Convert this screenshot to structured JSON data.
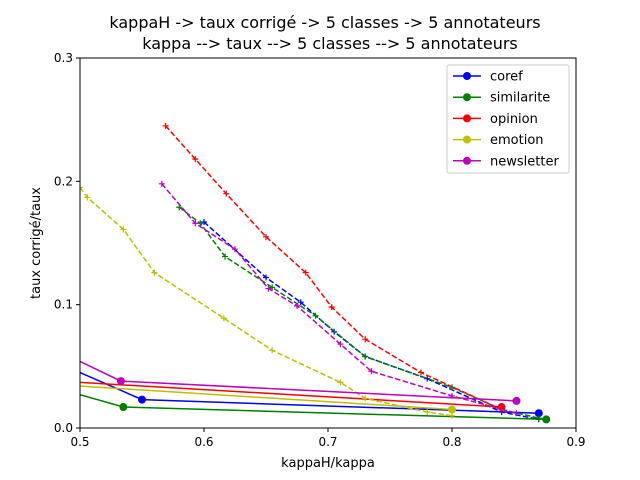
{
  "chart_data": {
    "type": "line",
    "title": [
      "kappaH -> taux corrigé -> 5 classes -> 5 annotateurs",
      "kappa --> taux --> 5 classes --> 5 annotateurs"
    ],
    "xlabel": "kappaH/kappa",
    "ylabel": "taux corrigé/taux",
    "xlim": [
      0.5,
      0.9
    ],
    "ylim": [
      0,
      0.3
    ],
    "xticks": [
      "0.5",
      "0.6",
      "0.7",
      "0.8",
      "0.9"
    ],
    "yticks": [
      "0.0",
      "0.1",
      "0.2",
      "0.3"
    ],
    "xtick_values": [
      0.5,
      0.6,
      0.7,
      0.8,
      0.9
    ],
    "ytick_values": [
      0.0,
      0.1,
      0.2,
      0.3
    ],
    "legend_position": "top-right",
    "grid": false,
    "series": [
      {
        "name": "coref",
        "color": "#0000ff",
        "solid": [
          [
            0.5,
            0.045
          ],
          [
            0.55,
            0.023
          ],
          [
            0.87,
            0.012
          ]
        ],
        "dashed": [
          [
            0.6,
            0.167
          ],
          [
            0.65,
            0.122
          ],
          [
            0.678,
            0.102
          ],
          [
            0.705,
            0.078
          ],
          [
            0.73,
            0.058
          ],
          [
            0.78,
            0.04
          ],
          [
            0.84,
            0.013
          ],
          [
            0.87,
            0.007
          ]
        ]
      },
      {
        "name": "similarite",
        "color": "#008000",
        "solid": [
          [
            0.5,
            0.027
          ],
          [
            0.535,
            0.017
          ],
          [
            0.876,
            0.007
          ]
        ],
        "dashed": [
          [
            0.58,
            0.179
          ],
          [
            0.597,
            0.166
          ],
          [
            0.617,
            0.139
          ],
          [
            0.655,
            0.114
          ],
          [
            0.69,
            0.091
          ],
          [
            0.73,
            0.058
          ],
          [
            0.8,
            0.033
          ],
          [
            0.84,
            0.015
          ],
          [
            0.87,
            0.008
          ]
        ]
      },
      {
        "name": "opinion",
        "color": "#ff0000",
        "solid": [
          [
            0.5,
            0.037
          ],
          [
            0.84,
            0.017
          ]
        ],
        "dashed": [
          [
            0.569,
            0.245
          ],
          [
            0.593,
            0.218
          ],
          [
            0.618,
            0.19
          ],
          [
            0.65,
            0.155
          ],
          [
            0.682,
            0.126
          ],
          [
            0.703,
            0.098
          ],
          [
            0.73,
            0.072
          ],
          [
            0.775,
            0.045
          ],
          [
            0.84,
            0.015
          ]
        ]
      },
      {
        "name": "emotion",
        "color": "#bfbf00",
        "solid": [
          [
            0.5,
            0.034
          ],
          [
            0.8,
            0.015
          ]
        ],
        "dashed": [
          [
            0.5,
            0.195
          ],
          [
            0.506,
            0.187
          ],
          [
            0.535,
            0.161
          ],
          [
            0.56,
            0.126
          ],
          [
            0.616,
            0.089
          ],
          [
            0.655,
            0.063
          ],
          [
            0.71,
            0.037
          ],
          [
            0.73,
            0.024
          ],
          [
            0.78,
            0.013
          ],
          [
            0.8,
            0.01
          ]
        ]
      },
      {
        "name": "newsletter",
        "color": "#bf00bf",
        "solid": [
          [
            0.5,
            0.054
          ],
          [
            0.533,
            0.038
          ],
          [
            0.852,
            0.022
          ]
        ],
        "dashed": [
          [
            0.566,
            0.198
          ],
          [
            0.593,
            0.166
          ],
          [
            0.625,
            0.145
          ],
          [
            0.652,
            0.113
          ],
          [
            0.675,
            0.099
          ],
          [
            0.71,
            0.068
          ],
          [
            0.735,
            0.046
          ],
          [
            0.8,
            0.026
          ],
          [
            0.852,
            0.012
          ]
        ]
      }
    ]
  }
}
